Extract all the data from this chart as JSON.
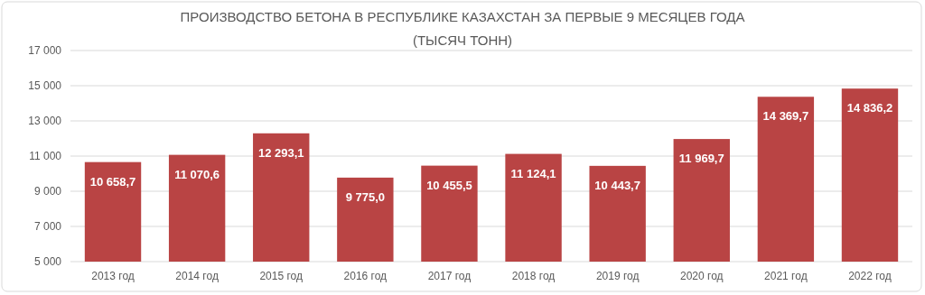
{
  "chart_data": {
    "type": "bar",
    "title": "ПРОИЗВОДСТВО БЕТОНА В РЕСПУБЛИКЕ КАЗАХСТАН ЗА ПЕРВЫЕ 9 МЕСЯЦЕВ ГОДА",
    "subtitle": "(ТЫСЯЧ ТОНН)",
    "categories": [
      "2013 год",
      "2014 год",
      "2015 год",
      "2016 год",
      "2017 год",
      "2018 год",
      "2019 год",
      "2020 год",
      "2021 год",
      "2022 год"
    ],
    "values": [
      10658.7,
      11070.6,
      12293.1,
      9775.0,
      10455.5,
      11124.1,
      10443.7,
      11969.7,
      14369.7,
      14836.2
    ],
    "value_labels": [
      "10 658,7",
      "11 070,6",
      "12 293,1",
      "9 775,0",
      "10 455,5",
      "11 124,1",
      "10 443,7",
      "11 969,7",
      "14 369,7",
      "14 836,2"
    ],
    "color": "#b94444",
    "ylim": [
      5000,
      17000
    ],
    "yticks": [
      {
        "value": 5000,
        "label": "5 000"
      },
      {
        "value": 7000,
        "label": "7 000"
      },
      {
        "value": 9000,
        "label": "9 000"
      },
      {
        "value": 11000,
        "label": "11 000"
      },
      {
        "value": 13000,
        "label": "13 000"
      },
      {
        "value": 15000,
        "label": "15 000"
      },
      {
        "value": 17000,
        "label": "17 000"
      }
    ],
    "grid": "y"
  }
}
